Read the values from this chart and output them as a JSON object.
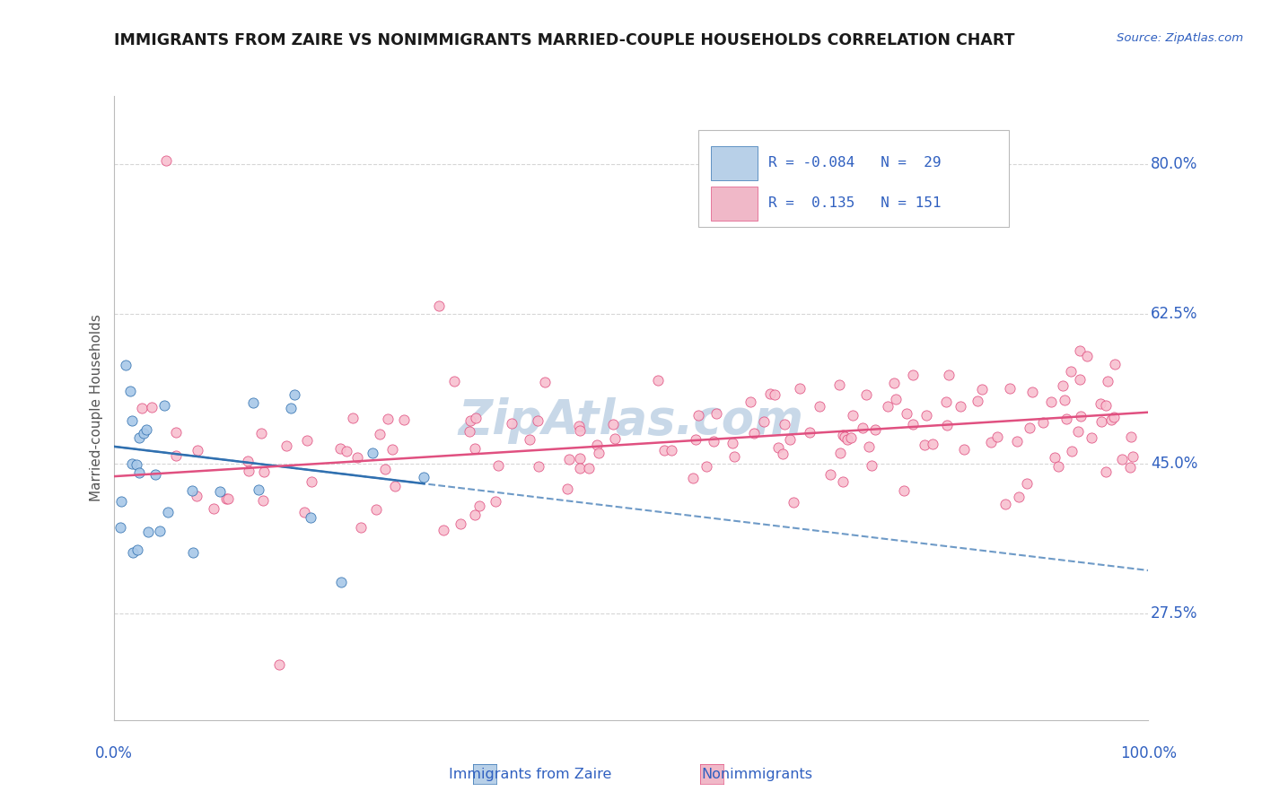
{
  "title": "IMMIGRANTS FROM ZAIRE VS NONIMMIGRANTS MARRIED-COUPLE HOUSEHOLDS CORRELATION CHART",
  "source_text": "Source: ZipAtlas.com",
  "ylabel": "Married-couple Households",
  "yaxis_labels": [
    "27.5%",
    "45.0%",
    "62.5%",
    "80.0%"
  ],
  "yaxis_values": [
    0.275,
    0.45,
    0.625,
    0.8
  ],
  "xaxis_range": [
    0.0,
    1.0
  ],
  "yaxis_range": [
    0.15,
    0.88
  ],
  "blue_scatter_color": "#a8c8e8",
  "pink_scatter_color": "#f8c0d0",
  "trend_blue_color": "#3070b0",
  "trend_pink_color": "#e05080",
  "watermark_color": "#c8d8e8",
  "title_color": "#1a1a1a",
  "axis_label_color": "#3060c0",
  "legend_box_color_blue": "#b8d0e8",
  "legend_box_color_pink": "#f0b8c8",
  "bg_color": "#ffffff",
  "grid_color": "#cccccc",
  "blue_trend_x": [
    0.0,
    1.0
  ],
  "blue_trend_y_start": 0.47,
  "blue_trend_y_end": 0.325,
  "pink_trend_x": [
    0.0,
    1.0
  ],
  "pink_trend_y_start": 0.435,
  "pink_trend_y_end": 0.51
}
